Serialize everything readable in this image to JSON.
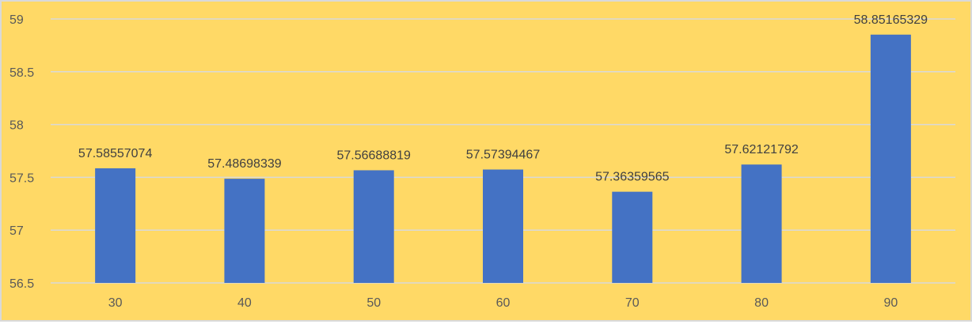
{
  "colors": {
    "background": "#FFD966",
    "bar": "#4472C4",
    "gridline": "#D9D9D9",
    "text": "#595959"
  },
  "chart_data": {
    "type": "bar",
    "title": "",
    "xlabel": "",
    "ylabel": "",
    "categories": [
      "30",
      "40",
      "50",
      "60",
      "70",
      "80",
      "90"
    ],
    "values": [
      57.58557074,
      57.48698339,
      57.56688819,
      57.57394467,
      57.36359565,
      57.62121792,
      58.85165329
    ],
    "data_labels": [
      "57.58557074",
      "57.48698339",
      "57.56688819",
      "57.57394467",
      "57.36359565",
      "57.62121792",
      "58.85165329"
    ],
    "ylim": [
      56.5,
      59
    ],
    "yticks": [
      56.5,
      57,
      57.5,
      58,
      58.5,
      59
    ],
    "ytick_labels": [
      "56.5",
      "57",
      "57.5",
      "58",
      "58.5",
      "59"
    ],
    "grid": true,
    "legend": "none"
  }
}
